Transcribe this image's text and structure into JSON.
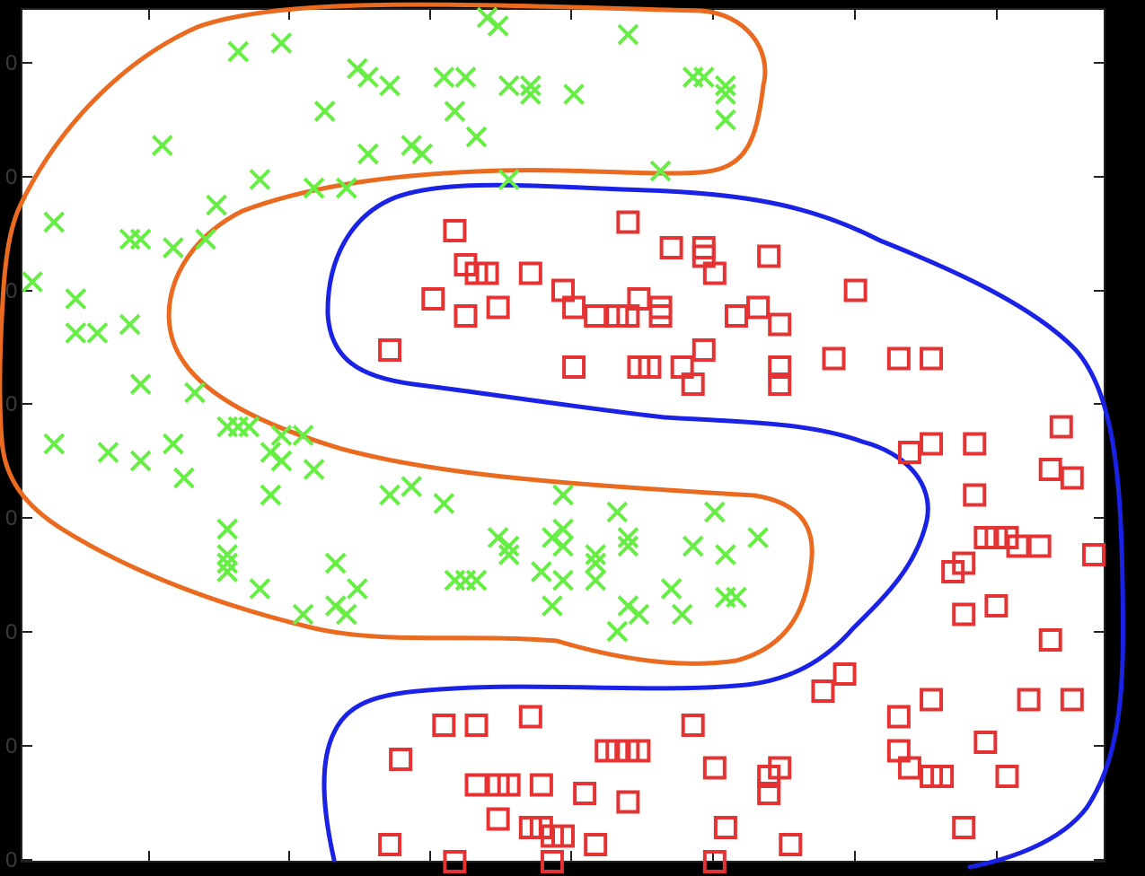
{
  "chart_data": {
    "type": "scatter",
    "title": "",
    "xlabel": "",
    "ylabel": "",
    "grid": false,
    "legend": "none",
    "xlim": [
      0,
      1
    ],
    "ylim": [
      0,
      1
    ],
    "ytick_labels": [
      "0",
      "0",
      "0",
      "0",
      "0",
      "0",
      "0",
      "0"
    ],
    "colors": {
      "green_marker": "#66ee44",
      "red_marker": "#e53333",
      "orange_boundary": "#ea6a1f",
      "blue_boundary": "#1a22e6",
      "frame": "#222222",
      "background": "#ffffff",
      "outer_background": "#000000"
    },
    "series": [
      {
        "marker": "x",
        "color": "#66ee44",
        "points": [
          [
            0.43,
            0.99
          ],
          [
            0.44,
            0.98
          ],
          [
            0.56,
            0.97
          ],
          [
            0.24,
            0.96
          ],
          [
            0.2,
            0.95
          ],
          [
            0.31,
            0.93
          ],
          [
            0.32,
            0.92
          ],
          [
            0.34,
            0.91
          ],
          [
            0.39,
            0.92
          ],
          [
            0.41,
            0.92
          ],
          [
            0.45,
            0.91
          ],
          [
            0.47,
            0.91
          ],
          [
            0.47,
            0.9
          ],
          [
            0.51,
            0.9
          ],
          [
            0.62,
            0.92
          ],
          [
            0.63,
            0.92
          ],
          [
            0.65,
            0.91
          ],
          [
            0.65,
            0.9
          ],
          [
            0.28,
            0.88
          ],
          [
            0.4,
            0.88
          ],
          [
            0.42,
            0.85
          ],
          [
            0.65,
            0.87
          ],
          [
            0.13,
            0.84
          ],
          [
            0.36,
            0.84
          ],
          [
            0.37,
            0.83
          ],
          [
            0.32,
            0.83
          ],
          [
            0.59,
            0.81
          ],
          [
            0.45,
            0.8
          ],
          [
            0.22,
            0.8
          ],
          [
            0.27,
            0.79
          ],
          [
            0.3,
            0.79
          ],
          [
            0.18,
            0.77
          ],
          [
            0.03,
            0.75
          ],
          [
            0.1,
            0.73
          ],
          [
            0.11,
            0.73
          ],
          [
            0.14,
            0.72
          ],
          [
            0.17,
            0.73
          ],
          [
            0.01,
            0.68
          ],
          [
            0.05,
            0.66
          ],
          [
            0.05,
            0.62
          ],
          [
            0.07,
            0.62
          ],
          [
            0.1,
            0.63
          ],
          [
            0.11,
            0.56
          ],
          [
            0.16,
            0.55
          ],
          [
            0.03,
            0.49
          ],
          [
            0.08,
            0.48
          ],
          [
            0.11,
            0.47
          ],
          [
            0.14,
            0.49
          ],
          [
            0.15,
            0.45
          ],
          [
            0.19,
            0.51
          ],
          [
            0.2,
            0.51
          ],
          [
            0.21,
            0.51
          ],
          [
            0.24,
            0.5
          ],
          [
            0.26,
            0.5
          ],
          [
            0.23,
            0.48
          ],
          [
            0.24,
            0.47
          ],
          [
            0.23,
            0.43
          ],
          [
            0.27,
            0.46
          ],
          [
            0.34,
            0.43
          ],
          [
            0.36,
            0.44
          ],
          [
            0.39,
            0.42
          ],
          [
            0.5,
            0.43
          ],
          [
            0.55,
            0.41
          ],
          [
            0.64,
            0.41
          ],
          [
            0.19,
            0.39
          ],
          [
            0.19,
            0.36
          ],
          [
            0.19,
            0.35
          ],
          [
            0.19,
            0.34
          ],
          [
            0.22,
            0.32
          ],
          [
            0.29,
            0.35
          ],
          [
            0.31,
            0.32
          ],
          [
            0.26,
            0.29
          ],
          [
            0.29,
            0.3
          ],
          [
            0.3,
            0.29
          ],
          [
            0.44,
            0.38
          ],
          [
            0.45,
            0.37
          ],
          [
            0.45,
            0.36
          ],
          [
            0.49,
            0.38
          ],
          [
            0.5,
            0.39
          ],
          [
            0.5,
            0.37
          ],
          [
            0.53,
            0.36
          ],
          [
            0.56,
            0.37
          ],
          [
            0.56,
            0.38
          ],
          [
            0.62,
            0.37
          ],
          [
            0.65,
            0.36
          ],
          [
            0.68,
            0.38
          ],
          [
            0.4,
            0.33
          ],
          [
            0.41,
            0.33
          ],
          [
            0.42,
            0.33
          ],
          [
            0.48,
            0.34
          ],
          [
            0.5,
            0.33
          ],
          [
            0.53,
            0.35
          ],
          [
            0.53,
            0.33
          ],
          [
            0.6,
            0.32
          ],
          [
            0.49,
            0.3
          ],
          [
            0.56,
            0.3
          ],
          [
            0.57,
            0.29
          ],
          [
            0.61,
            0.29
          ],
          [
            0.65,
            0.31
          ],
          [
            0.66,
            0.31
          ],
          [
            0.55,
            0.27
          ]
        ]
      },
      {
        "marker": "square",
        "color": "#e53333",
        "points": [
          [
            0.4,
            0.74
          ],
          [
            0.56,
            0.75
          ],
          [
            0.6,
            0.72
          ],
          [
            0.63,
            0.72
          ],
          [
            0.63,
            0.71
          ],
          [
            0.69,
            0.71
          ],
          [
            0.41,
            0.7
          ],
          [
            0.42,
            0.69
          ],
          [
            0.43,
            0.69
          ],
          [
            0.47,
            0.69
          ],
          [
            0.38,
            0.66
          ],
          [
            0.41,
            0.64
          ],
          [
            0.44,
            0.65
          ],
          [
            0.5,
            0.67
          ],
          [
            0.51,
            0.65
          ],
          [
            0.53,
            0.64
          ],
          [
            0.55,
            0.64
          ],
          [
            0.56,
            0.64
          ],
          [
            0.57,
            0.66
          ],
          [
            0.59,
            0.64
          ],
          [
            0.59,
            0.65
          ],
          [
            0.64,
            0.69
          ],
          [
            0.66,
            0.64
          ],
          [
            0.68,
            0.65
          ],
          [
            0.7,
            0.63
          ],
          [
            0.77,
            0.67
          ],
          [
            0.34,
            0.6
          ],
          [
            0.51,
            0.58
          ],
          [
            0.57,
            0.58
          ],
          [
            0.58,
            0.58
          ],
          [
            0.61,
            0.58
          ],
          [
            0.63,
            0.6
          ],
          [
            0.7,
            0.58
          ],
          [
            0.75,
            0.59
          ],
          [
            0.81,
            0.59
          ],
          [
            0.84,
            0.59
          ],
          [
            0.62,
            0.56
          ],
          [
            0.7,
            0.56
          ],
          [
            0.82,
            0.48
          ],
          [
            0.84,
            0.49
          ],
          [
            0.88,
            0.49
          ],
          [
            0.96,
            0.51
          ],
          [
            0.95,
            0.46
          ],
          [
            0.97,
            0.45
          ],
          [
            0.88,
            0.43
          ],
          [
            0.89,
            0.38
          ],
          [
            0.9,
            0.38
          ],
          [
            0.91,
            0.38
          ],
          [
            0.92,
            0.37
          ],
          [
            0.94,
            0.37
          ],
          [
            0.87,
            0.35
          ],
          [
            0.86,
            0.34
          ],
          [
            0.99,
            0.36
          ],
          [
            0.87,
            0.29
          ],
          [
            0.9,
            0.3
          ],
          [
            0.95,
            0.26
          ],
          [
            0.74,
            0.2
          ],
          [
            0.76,
            0.22
          ],
          [
            0.81,
            0.17
          ],
          [
            0.84,
            0.19
          ],
          [
            0.93,
            0.19
          ],
          [
            0.97,
            0.19
          ],
          [
            0.39,
            0.16
          ],
          [
            0.42,
            0.16
          ],
          [
            0.47,
            0.17
          ],
          [
            0.62,
            0.16
          ],
          [
            0.35,
            0.12
          ],
          [
            0.54,
            0.13
          ],
          [
            0.55,
            0.13
          ],
          [
            0.56,
            0.13
          ],
          [
            0.57,
            0.13
          ],
          [
            0.64,
            0.11
          ],
          [
            0.7,
            0.11
          ],
          [
            0.81,
            0.13
          ],
          [
            0.82,
            0.11
          ],
          [
            0.84,
            0.1
          ],
          [
            0.85,
            0.1
          ],
          [
            0.89,
            0.14
          ],
          [
            0.91,
            0.1
          ],
          [
            0.42,
            0.09
          ],
          [
            0.44,
            0.09
          ],
          [
            0.45,
            0.09
          ],
          [
            0.48,
            0.09
          ],
          [
            0.52,
            0.08
          ],
          [
            0.56,
            0.07
          ],
          [
            0.69,
            0.1
          ],
          [
            0.69,
            0.08
          ],
          [
            0.44,
            0.05
          ],
          [
            0.47,
            0.04
          ],
          [
            0.48,
            0.04
          ],
          [
            0.49,
            0.03
          ],
          [
            0.5,
            0.03
          ],
          [
            0.53,
            0.02
          ],
          [
            0.34,
            0.02
          ],
          [
            0.4,
            0.0
          ],
          [
            0.49,
            0.0
          ],
          [
            0.64,
            0.0
          ],
          [
            0.65,
            0.04
          ],
          [
            0.71,
            0.02
          ],
          [
            0.87,
            0.04
          ]
        ]
      }
    ]
  }
}
